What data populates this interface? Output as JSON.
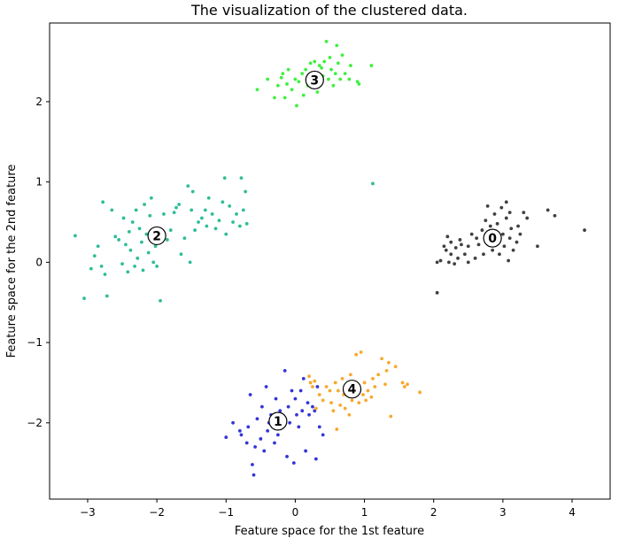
{
  "chart_data": {
    "type": "scatter",
    "title": "The visualization of the clustered data.",
    "xlabel": "Feature space for the 1st feature",
    "ylabel": "Feature space for the 2nd feature",
    "xlim": [
      -3.55,
      4.55
    ],
    "ylim": [
      -2.95,
      2.98
    ],
    "xticks": [
      -3,
      -2,
      -1,
      0,
      1,
      2,
      3,
      4
    ],
    "yticks": [
      -2,
      -1,
      0,
      1,
      2
    ],
    "grid": false,
    "legend": "none",
    "series": [
      {
        "cluster": "0",
        "color": "#404040",
        "center": [
          2.85,
          0.3
        ],
        "points": [
          [
            2.05,
            -0.38
          ],
          [
            2.05,
            0.0
          ],
          [
            2.1,
            0.02
          ],
          [
            2.15,
            0.2
          ],
          [
            2.18,
            0.15
          ],
          [
            2.2,
            0.32
          ],
          [
            2.22,
            0.0
          ],
          [
            2.25,
            0.1
          ],
          [
            2.25,
            0.25
          ],
          [
            2.3,
            -0.02
          ],
          [
            2.32,
            0.18
          ],
          [
            2.35,
            0.05
          ],
          [
            2.38,
            0.28
          ],
          [
            2.4,
            0.22
          ],
          [
            2.45,
            0.1
          ],
          [
            2.5,
            0.0
          ],
          [
            2.5,
            0.2
          ],
          [
            2.55,
            0.35
          ],
          [
            2.6,
            0.05
          ],
          [
            2.62,
            0.3
          ],
          [
            2.65,
            0.22
          ],
          [
            2.7,
            0.4
          ],
          [
            2.72,
            0.1
          ],
          [
            2.75,
            0.52
          ],
          [
            2.78,
            0.7
          ],
          [
            2.8,
            0.3
          ],
          [
            2.82,
            0.45
          ],
          [
            2.85,
            0.15
          ],
          [
            2.88,
            0.6
          ],
          [
            2.9,
            0.25
          ],
          [
            2.92,
            0.48
          ],
          [
            2.95,
            0.1
          ],
          [
            2.98,
            0.68
          ],
          [
            3.0,
            0.35
          ],
          [
            3.02,
            0.2
          ],
          [
            3.05,
            0.55
          ],
          [
            3.05,
            0.75
          ],
          [
            3.08,
            0.02
          ],
          [
            3.1,
            0.3
          ],
          [
            3.1,
            0.62
          ],
          [
            3.12,
            0.42
          ],
          [
            3.15,
            0.15
          ],
          [
            3.2,
            0.25
          ],
          [
            3.22,
            0.45
          ],
          [
            3.25,
            0.35
          ],
          [
            3.3,
            0.62
          ],
          [
            3.35,
            0.55
          ],
          [
            3.5,
            0.2
          ],
          [
            3.65,
            0.65
          ],
          [
            3.75,
            0.58
          ],
          [
            4.18,
            0.4
          ]
        ]
      },
      {
        "cluster": "1",
        "color": "#3535d8",
        "center": [
          -0.25,
          -1.98
        ],
        "points": [
          [
            -1.0,
            -2.18
          ],
          [
            -0.9,
            -2.0
          ],
          [
            -0.8,
            -2.1
          ],
          [
            -0.78,
            -2.15
          ],
          [
            -0.7,
            -2.25
          ],
          [
            -0.68,
            -2.05
          ],
          [
            -0.65,
            -1.65
          ],
          [
            -0.62,
            -2.52
          ],
          [
            -0.6,
            -2.65
          ],
          [
            -0.58,
            -2.3
          ],
          [
            -0.55,
            -1.95
          ],
          [
            -0.5,
            -2.2
          ],
          [
            -0.48,
            -1.8
          ],
          [
            -0.45,
            -2.35
          ],
          [
            -0.42,
            -1.55
          ],
          [
            -0.4,
            -2.1
          ],
          [
            -0.38,
            -2.0
          ],
          [
            -0.35,
            -1.9
          ],
          [
            -0.3,
            -2.25
          ],
          [
            -0.28,
            -1.7
          ],
          [
            -0.25,
            -2.15
          ],
          [
            -0.22,
            -1.85
          ],
          [
            -0.2,
            -2.05
          ],
          [
            -0.18,
            -1.95
          ],
          [
            -0.15,
            -1.35
          ],
          [
            -0.12,
            -2.42
          ],
          [
            -0.1,
            -1.8
          ],
          [
            -0.08,
            -2.0
          ],
          [
            -0.05,
            -1.6
          ],
          [
            -0.02,
            -2.5
          ],
          [
            0.0,
            -1.7
          ],
          [
            0.02,
            -1.9
          ],
          [
            0.05,
            -2.05
          ],
          [
            0.08,
            -1.6
          ],
          [
            0.1,
            -1.85
          ],
          [
            0.12,
            -1.45
          ],
          [
            0.15,
            -2.35
          ],
          [
            0.18,
            -1.75
          ],
          [
            0.2,
            -1.9
          ],
          [
            0.25,
            -1.8
          ],
          [
            0.28,
            -1.85
          ],
          [
            0.3,
            -2.45
          ],
          [
            0.32,
            -1.55
          ],
          [
            0.35,
            -2.05
          ],
          [
            0.4,
            -2.15
          ]
        ]
      },
      {
        "cluster": "2",
        "color": "#2ebd99",
        "center": [
          -2.0,
          0.33
        ],
        "points": [
          [
            -3.18,
            0.33
          ],
          [
            -3.05,
            -0.45
          ],
          [
            -2.95,
            -0.08
          ],
          [
            -2.9,
            0.08
          ],
          [
            -2.85,
            0.2
          ],
          [
            -2.8,
            -0.05
          ],
          [
            -2.78,
            0.75
          ],
          [
            -2.75,
            -0.15
          ],
          [
            -2.72,
            -0.42
          ],
          [
            -2.65,
            0.65
          ],
          [
            -2.6,
            0.32
          ],
          [
            -2.55,
            0.28
          ],
          [
            -2.5,
            -0.02
          ],
          [
            -2.48,
            0.55
          ],
          [
            -2.45,
            0.22
          ],
          [
            -2.42,
            -0.12
          ],
          [
            -2.4,
            0.38
          ],
          [
            -2.38,
            0.15
          ],
          [
            -2.35,
            0.5
          ],
          [
            -2.32,
            -0.05
          ],
          [
            -2.3,
            0.65
          ],
          [
            -2.28,
            0.05
          ],
          [
            -2.25,
            0.42
          ],
          [
            -2.22,
            0.25
          ],
          [
            -2.2,
            -0.1
          ],
          [
            -2.18,
            0.72
          ],
          [
            -2.15,
            0.35
          ],
          [
            -2.12,
            0.12
          ],
          [
            -2.1,
            0.58
          ],
          [
            -2.08,
            0.8
          ],
          [
            -2.05,
            0.0
          ],
          [
            -2.02,
            0.2
          ],
          [
            -2.0,
            -0.05
          ],
          [
            -1.95,
            -0.48
          ],
          [
            -1.9,
            0.6
          ],
          [
            -1.85,
            0.28
          ],
          [
            -1.8,
            0.4
          ],
          [
            -1.75,
            0.62
          ],
          [
            -1.72,
            0.68
          ],
          [
            -1.68,
            0.72
          ],
          [
            -1.65,
            0.1
          ],
          [
            -1.6,
            0.3
          ],
          [
            -1.55,
            0.95
          ],
          [
            -1.52,
            0.0
          ],
          [
            -1.5,
            0.65
          ],
          [
            -1.48,
            0.88
          ],
          [
            -1.45,
            0.4
          ],
          [
            -1.4,
            0.5
          ],
          [
            -1.35,
            0.55
          ],
          [
            -1.3,
            0.65
          ],
          [
            -1.28,
            0.45
          ],
          [
            -1.25,
            0.8
          ],
          [
            -1.2,
            0.6
          ],
          [
            -1.15,
            0.42
          ],
          [
            -1.1,
            0.52
          ],
          [
            -1.05,
            0.75
          ],
          [
            -1.02,
            1.05
          ],
          [
            -1.0,
            0.35
          ],
          [
            -0.95,
            0.7
          ],
          [
            -0.9,
            0.5
          ],
          [
            -0.85,
            0.6
          ],
          [
            -0.8,
            0.45
          ],
          [
            -0.78,
            1.05
          ],
          [
            -0.75,
            0.65
          ],
          [
            -0.72,
            0.88
          ],
          [
            -0.7,
            0.48
          ],
          [
            1.12,
            0.98
          ]
        ]
      },
      {
        "cluster": "3",
        "color": "#3ff03f",
        "center": [
          0.28,
          2.27
        ],
        "points": [
          [
            -0.55,
            2.15
          ],
          [
            -0.4,
            2.28
          ],
          [
            -0.3,
            2.05
          ],
          [
            -0.25,
            2.2
          ],
          [
            -0.2,
            2.3
          ],
          [
            -0.18,
            2.35
          ],
          [
            -0.15,
            2.05
          ],
          [
            -0.12,
            2.22
          ],
          [
            -0.1,
            2.4
          ],
          [
            -0.05,
            2.15
          ],
          [
            0.0,
            2.28
          ],
          [
            0.02,
            1.95
          ],
          [
            0.05,
            2.25
          ],
          [
            0.1,
            2.35
          ],
          [
            0.12,
            2.08
          ],
          [
            0.15,
            2.4
          ],
          [
            0.18,
            2.2
          ],
          [
            0.2,
            2.3
          ],
          [
            0.22,
            2.48
          ],
          [
            0.25,
            2.18
          ],
          [
            0.28,
            2.5
          ],
          [
            0.3,
            2.35
          ],
          [
            0.32,
            2.12
          ],
          [
            0.35,
            2.45
          ],
          [
            0.38,
            2.42
          ],
          [
            0.4,
            2.32
          ],
          [
            0.42,
            2.5
          ],
          [
            0.45,
            2.75
          ],
          [
            0.48,
            2.28
          ],
          [
            0.5,
            2.55
          ],
          [
            0.52,
            2.4
          ],
          [
            0.55,
            2.2
          ],
          [
            0.58,
            2.35
          ],
          [
            0.6,
            2.7
          ],
          [
            0.62,
            2.48
          ],
          [
            0.65,
            2.28
          ],
          [
            0.68,
            2.58
          ],
          [
            0.72,
            2.35
          ],
          [
            0.78,
            2.28
          ],
          [
            0.8,
            2.45
          ],
          [
            0.9,
            2.25
          ],
          [
            0.92,
            2.22
          ],
          [
            1.1,
            2.45
          ]
        ]
      },
      {
        "cluster": "4",
        "color": "#f8a82e",
        "center": [
          0.82,
          -1.58
        ],
        "points": [
          [
            0.2,
            -1.42
          ],
          [
            0.22,
            -1.5
          ],
          [
            0.25,
            -1.55
          ],
          [
            0.28,
            -1.48
          ],
          [
            0.3,
            -1.82
          ],
          [
            0.35,
            -1.65
          ],
          [
            0.4,
            -1.72
          ],
          [
            0.45,
            -1.55
          ],
          [
            0.5,
            -1.6
          ],
          [
            0.52,
            -1.75
          ],
          [
            0.55,
            -1.85
          ],
          [
            0.58,
            -1.5
          ],
          [
            0.6,
            -2.08
          ],
          [
            0.62,
            -1.6
          ],
          [
            0.65,
            -1.78
          ],
          [
            0.68,
            -1.45
          ],
          [
            0.7,
            -1.65
          ],
          [
            0.72,
            -1.82
          ],
          [
            0.75,
            -1.52
          ],
          [
            0.78,
            -1.9
          ],
          [
            0.8,
            -1.4
          ],
          [
            0.82,
            -1.72
          ],
          [
            0.85,
            -1.6
          ],
          [
            0.88,
            -1.15
          ],
          [
            0.9,
            -1.55
          ],
          [
            0.92,
            -1.75
          ],
          [
            0.95,
            -1.12
          ],
          [
            0.98,
            -1.65
          ],
          [
            1.0,
            -1.5
          ],
          [
            1.02,
            -1.72
          ],
          [
            1.05,
            -1.6
          ],
          [
            1.1,
            -1.68
          ],
          [
            1.12,
            -1.45
          ],
          [
            1.15,
            -1.55
          ],
          [
            1.2,
            -1.4
          ],
          [
            1.25,
            -1.2
          ],
          [
            1.3,
            -1.52
          ],
          [
            1.32,
            -1.35
          ],
          [
            1.35,
            -1.25
          ],
          [
            1.38,
            -1.92
          ],
          [
            1.45,
            -1.3
          ],
          [
            1.55,
            -1.5
          ],
          [
            1.58,
            -1.55
          ],
          [
            1.62,
            -1.52
          ],
          [
            1.8,
            -1.62
          ]
        ]
      }
    ]
  }
}
